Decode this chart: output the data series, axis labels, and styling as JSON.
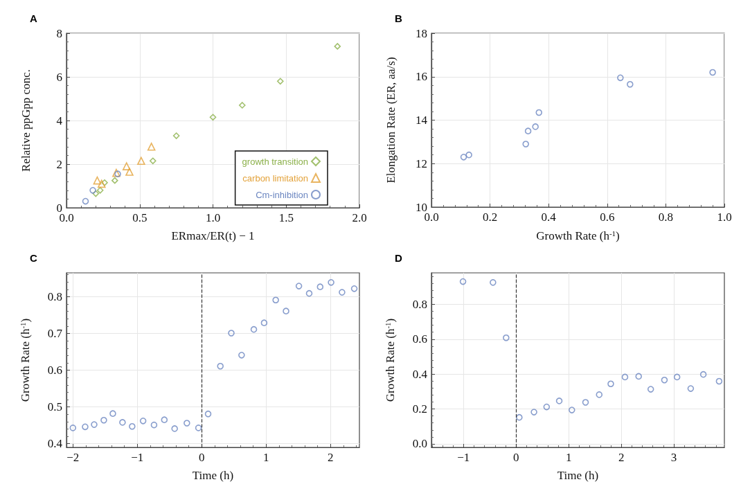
{
  "chart_data": [
    {
      "type": "scatter",
      "title": "A",
      "xlabel": "ERmax/ER(t) − 1",
      "ylabel": "Relative ppGpp conc.",
      "xlim": [
        0,
        2
      ],
      "ylim": [
        0,
        8
      ],
      "xticks": [
        {
          "value": 0,
          "label": "0.0"
        },
        0.5,
        {
          "value": 1,
          "label": "1.0"
        },
        1.5,
        {
          "value": 2,
          "label": "2.0"
        }
      ],
      "yticks": [
        0,
        2,
        4,
        6,
        8
      ],
      "grid": true,
      "legend": "bottom right",
      "series": [
        {
          "name": "growth transition",
          "color": "#8bb04a",
          "marker": "diamond",
          "x": [
            0.2,
            0.23,
            0.26,
            0.33,
            0.59,
            0.75,
            1.0,
            1.2,
            1.46,
            1.85
          ],
          "values": [
            0.65,
            0.8,
            1.15,
            1.25,
            2.15,
            3.3,
            4.15,
            4.7,
            5.8,
            7.4
          ]
        },
        {
          "name": "carbon limitation",
          "color": "#e3a23a",
          "marker": "triangle",
          "x": [
            0.21,
            0.24,
            0.34,
            0.41,
            0.43,
            0.51,
            0.58
          ],
          "values": [
            1.25,
            1.1,
            1.6,
            1.9,
            1.65,
            2.15,
            2.8
          ]
        },
        {
          "name": "Cm-inhibition",
          "color": "#6b86c0",
          "marker": "circle",
          "x": [
            0.13,
            0.18,
            0.35
          ],
          "values": [
            0.3,
            0.8,
            1.55
          ]
        }
      ]
    },
    {
      "type": "scatter",
      "title": "B",
      "xlabel": "Growth Rate (h$^{-1}$)",
      "ylabel": "Elongation Rate (ER, aa/s)",
      "xlim": [
        0,
        1
      ],
      "ylim": [
        10,
        18
      ],
      "xticks": [
        {
          "value": 0,
          "label": "0.0"
        },
        0.2,
        0.4,
        0.6,
        0.8,
        {
          "value": 1,
          "label": "1.0"
        }
      ],
      "yticks": [
        10,
        12,
        14,
        16,
        18
      ],
      "grid": true,
      "series": [
        {
          "color": "#6b86c0",
          "marker": "circle",
          "x": [
            0.11,
            0.128,
            0.322,
            0.33,
            0.355,
            0.367,
            0.645,
            0.678,
            0.96
          ],
          "values": [
            12.3,
            12.4,
            12.9,
            13.5,
            13.7,
            14.35,
            15.95,
            15.65,
            16.2
          ]
        }
      ]
    },
    {
      "type": "scatter",
      "title": "C",
      "xlabel": "Time (h)",
      "ylabel": "Growth Rate (h$^{-1}$)",
      "xlim": [
        -2.1,
        2.45
      ],
      "ylim": [
        0.39,
        0.865
      ],
      "xticks": [
        {
          "value": -2,
          "label": "−2"
        },
        {
          "value": -1,
          "label": "−1"
        },
        0,
        1,
        2
      ],
      "yticks": [
        0.4,
        0.5,
        0.6,
        0.7,
        0.8
      ],
      "grid": true,
      "ref_lines": [
        {
          "axis": "x",
          "value": 0,
          "color": "#333333",
          "line_style": "dashed"
        }
      ],
      "series": [
        {
          "color": "#6b86c0",
          "marker": "circle",
          "x": [
            -2.0,
            -1.81,
            -1.67,
            -1.52,
            -1.38,
            -1.23,
            -1.08,
            -0.91,
            -0.74,
            -0.58,
            -0.42,
            -0.23,
            -0.05,
            0.1,
            0.29,
            0.46,
            0.62,
            0.81,
            0.97,
            1.15,
            1.31,
            1.51,
            1.67,
            1.84,
            2.01,
            2.18,
            2.37
          ],
          "values": [
            0.443,
            0.446,
            0.452,
            0.464,
            0.482,
            0.458,
            0.447,
            0.462,
            0.451,
            0.465,
            0.441,
            0.456,
            0.443,
            0.481,
            0.611,
            0.701,
            0.641,
            0.711,
            0.729,
            0.791,
            0.761,
            0.829,
            0.809,
            0.827,
            0.839,
            0.812,
            0.822
          ]
        }
      ]
    },
    {
      "type": "scatter",
      "title": "D",
      "xlabel": "Time (h)",
      "ylabel": "Growth Rate (h$^{-1}$)",
      "xlim": [
        -1.61,
        3.96
      ],
      "ylim": [
        -0.02,
        0.98
      ],
      "xticks": [
        {
          "value": -1,
          "label": "−1"
        },
        0,
        1,
        2,
        3
      ],
      "yticks": [
        {
          "value": 0,
          "label": "0.0"
        },
        0.2,
        0.4,
        0.6,
        0.8
      ],
      "grid": true,
      "ref_lines": [
        {
          "axis": "x",
          "value": 0,
          "color": "#333333",
          "line_style": "dashed"
        }
      ],
      "series": [
        {
          "color": "#6b86c0",
          "marker": "circle",
          "x": [
            -1.01,
            -0.44,
            -0.19,
            0.06,
            0.34,
            0.58,
            0.82,
            1.06,
            1.32,
            1.58,
            1.8,
            2.07,
            2.33,
            2.56,
            2.82,
            3.06,
            3.32,
            3.56,
            3.86
          ],
          "values": [
            0.93,
            0.925,
            0.608,
            0.152,
            0.182,
            0.212,
            0.246,
            0.194,
            0.238,
            0.282,
            0.344,
            0.383,
            0.387,
            0.313,
            0.366,
            0.383,
            0.317,
            0.398,
            0.359
          ]
        }
      ]
    }
  ]
}
